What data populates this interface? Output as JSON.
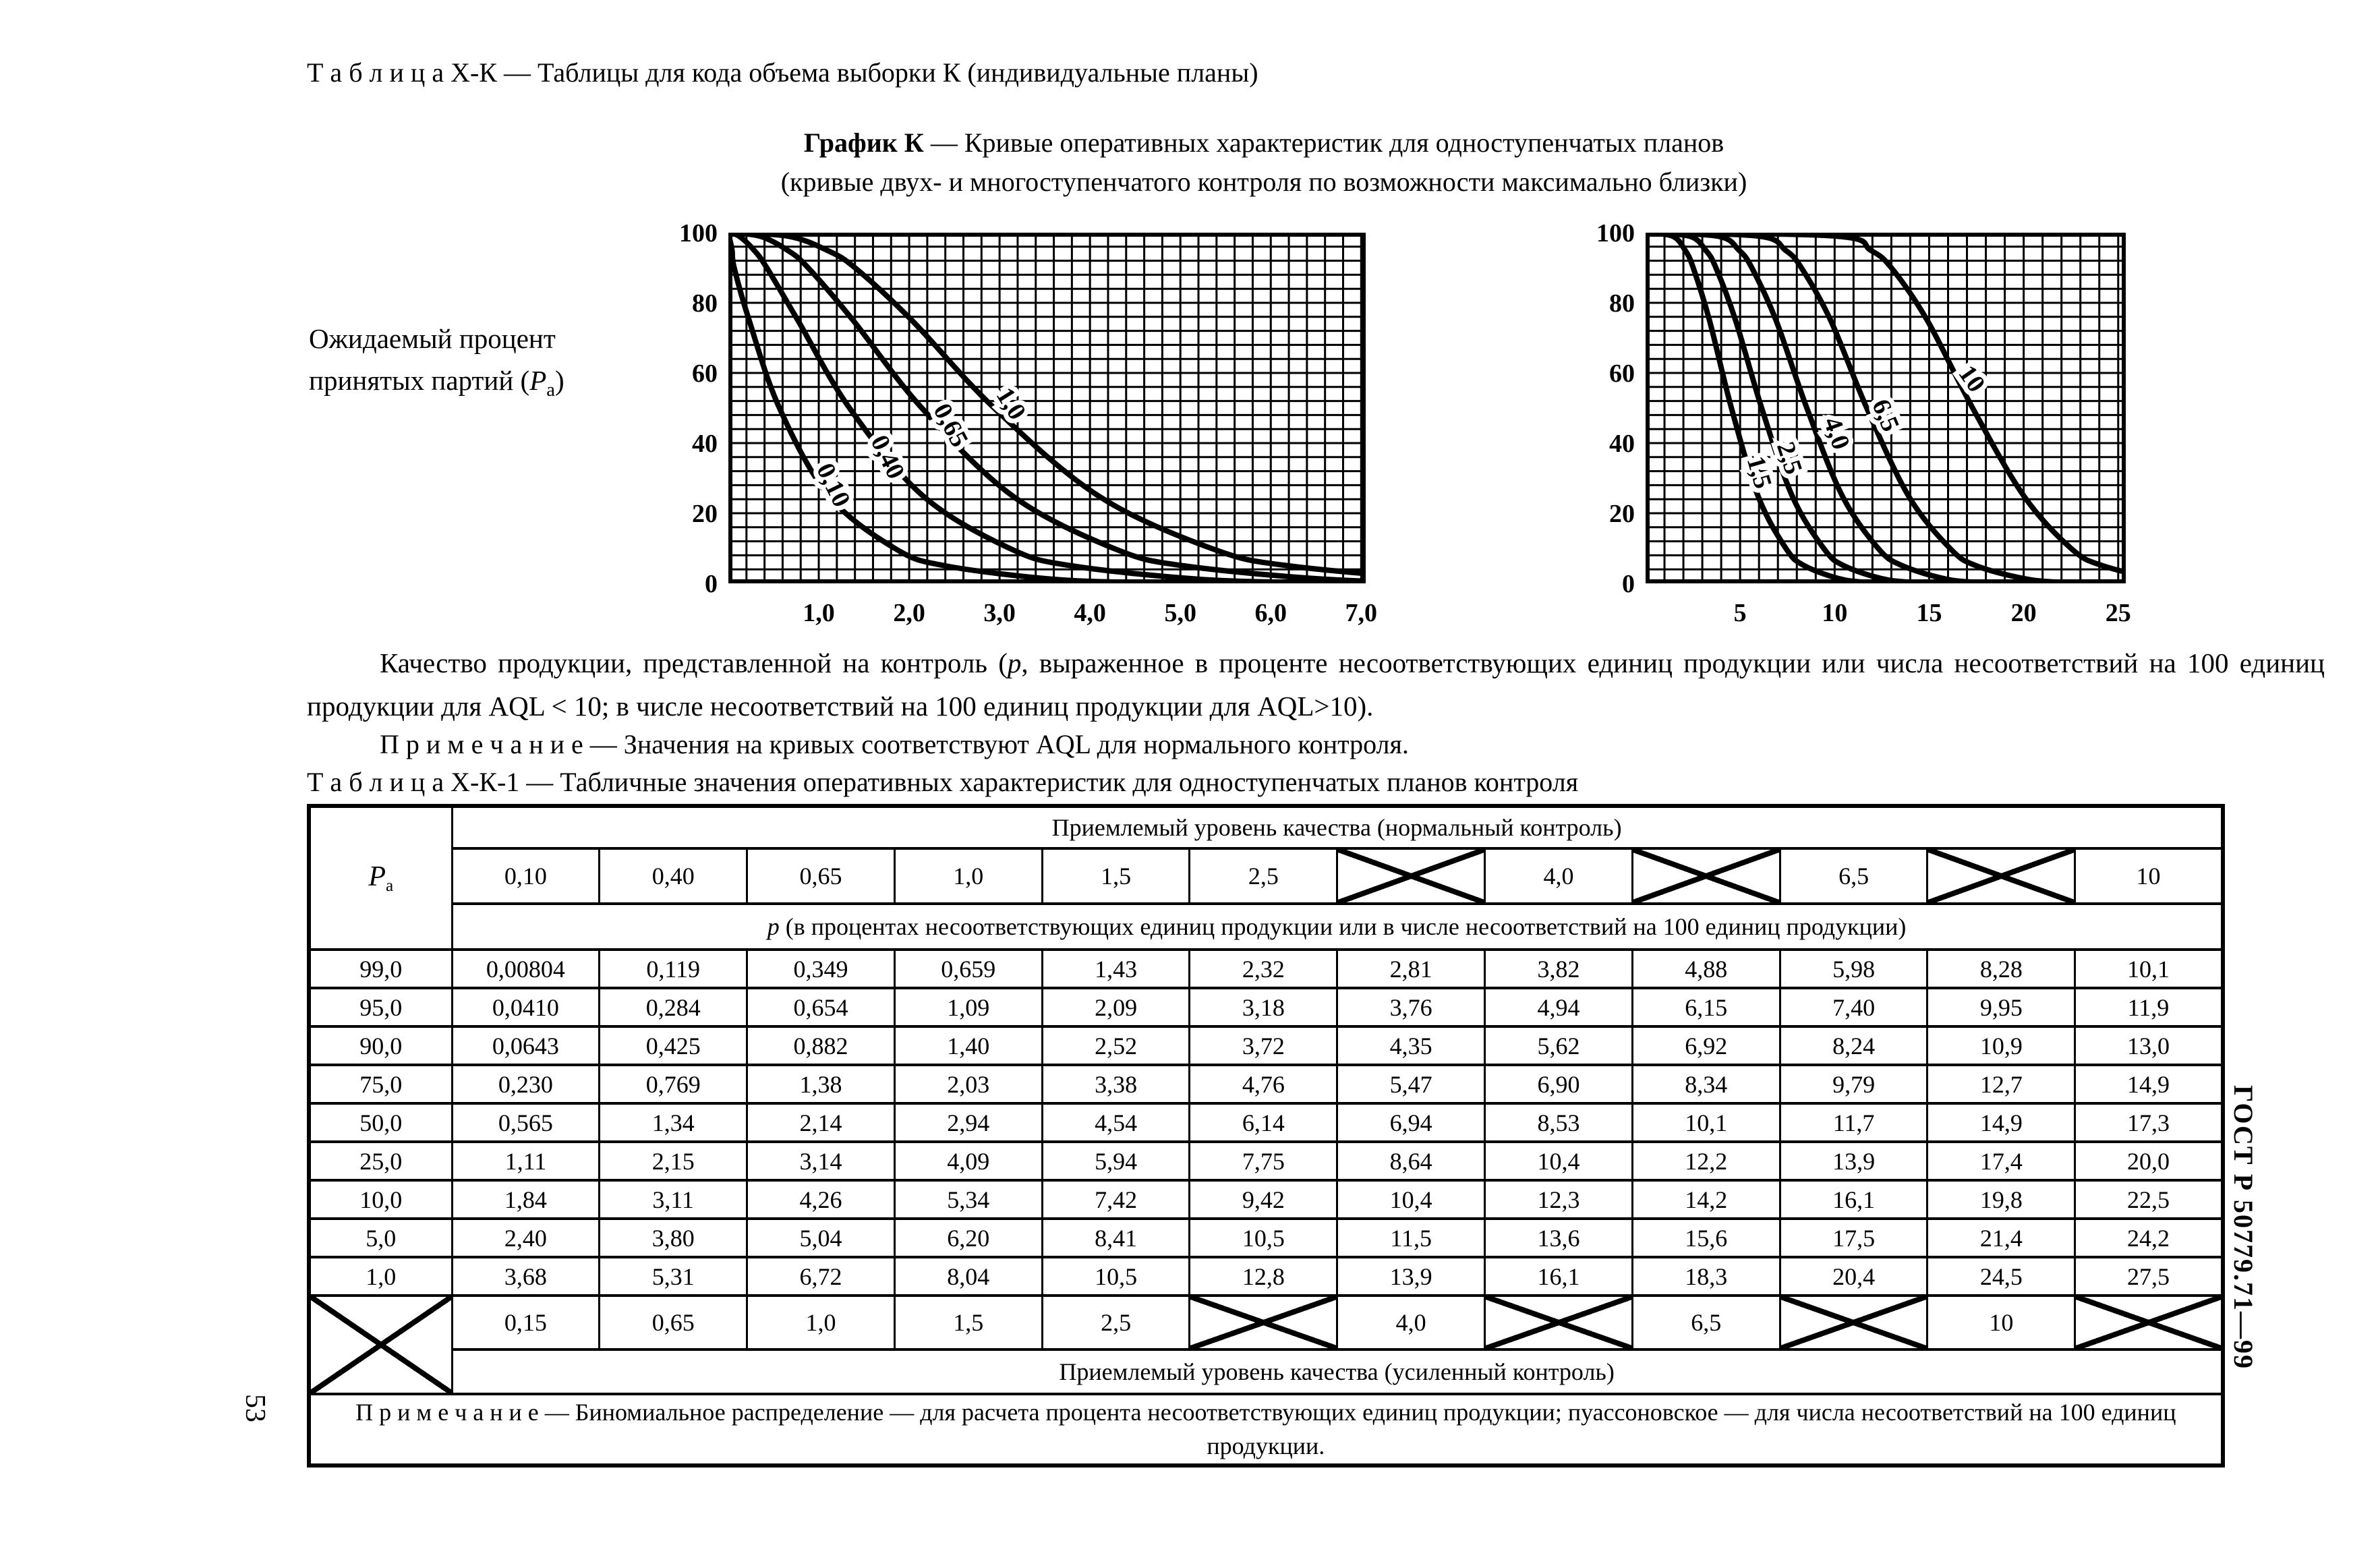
{
  "page": {
    "number": "53",
    "standard": "ГОСТ Р 50779.71—99"
  },
  "titles": {
    "table_xk": "Т а б л и ц а   Х-К — Таблицы для кода объема выборки К (индивидуальные планы)",
    "graph_bold": "График К",
    "graph_rest": " — Кривые оперативных характеристик для одноступенчатых планов",
    "graph_line2": "(кривые двух- и многоступенчатого контроля по возможности максимально близки)",
    "y_label_line1": "Ожидаемый процент",
    "y_label_line2_prefix": "принятых партий (",
    "y_label_line2_suffix": ")",
    "table_xk1": "Т а б л и ц а   Х-К-1 — Табличные значения оперативных характеристик для одноступенчатых планов контроля"
  },
  "symbols": {
    "pa_main": "P",
    "pa_sub": "а"
  },
  "content": {
    "q1": "Качество продукции, представленной на контроль (",
    "q_italic": "р",
    "q2": ", выраженное в проценте несоответствующих единиц продукции или числа несоответствий на 100 единиц продукции для AQL < 10; в числе несоответствий на 100 единиц продукции для AQL>10).",
    "note_graph": "П р и м е ч а н и е — Значения на кривых соответствуют AQL для нормального контроля."
  },
  "table": {
    "header_normal": "Приемлемый уровень качества (нормальный контроль)",
    "aql_normal": [
      "0,10",
      "0,40",
      "0,65",
      "1,0",
      "1,5",
      "2,5",
      null,
      "4,0",
      null,
      "6,5",
      null,
      "10"
    ],
    "p_italic": "р",
    "p_rest": " (в процентах несоответствующих единиц продукции или в числе несоответствий на 100 единиц продукции)",
    "rows": [
      {
        "pa": "99,0",
        "values": [
          "0,00804",
          "0,119",
          "0,349",
          "0,659",
          "1,43",
          "2,32",
          "2,81",
          "3,82",
          "4,88",
          "5,98",
          "8,28",
          "10,1"
        ]
      },
      {
        "pa": "95,0",
        "values": [
          "0,0410",
          "0,284",
          "0,654",
          "1,09",
          "2,09",
          "3,18",
          "3,76",
          "4,94",
          "6,15",
          "7,40",
          "9,95",
          "11,9"
        ]
      },
      {
        "pa": "90,0",
        "values": [
          "0,0643",
          "0,425",
          "0,882",
          "1,40",
          "2,52",
          "3,72",
          "4,35",
          "5,62",
          "6,92",
          "8,24",
          "10,9",
          "13,0"
        ]
      },
      {
        "pa": "75,0",
        "values": [
          "0,230",
          "0,769",
          "1,38",
          "2,03",
          "3,38",
          "4,76",
          "5,47",
          "6,90",
          "8,34",
          "9,79",
          "12,7",
          "14,9"
        ]
      },
      {
        "pa": "50,0",
        "values": [
          "0,565",
          "1,34",
          "2,14",
          "2,94",
          "4,54",
          "6,14",
          "6,94",
          "8,53",
          "10,1",
          "11,7",
          "14,9",
          "17,3"
        ]
      },
      {
        "pa": "25,0",
        "values": [
          "1,11",
          "2,15",
          "3,14",
          "4,09",
          "5,94",
          "7,75",
          "8,64",
          "10,4",
          "12,2",
          "13,9",
          "17,4",
          "20,0"
        ]
      },
      {
        "pa": "10,0",
        "values": [
          "1,84",
          "3,11",
          "4,26",
          "5,34",
          "7,42",
          "9,42",
          "10,4",
          "12,3",
          "14,2",
          "16,1",
          "19,8",
          "22,5"
        ]
      },
      {
        "pa": "5,0",
        "values": [
          "2,40",
          "3,80",
          "5,04",
          "6,20",
          "8,41",
          "10,5",
          "11,5",
          "13,6",
          "15,6",
          "17,5",
          "21,4",
          "24,2"
        ]
      },
      {
        "pa": "1,0",
        "values": [
          "3,68",
          "5,31",
          "6,72",
          "8,04",
          "10,5",
          "12,8",
          "13,9",
          "16,1",
          "18,3",
          "20,4",
          "24,5",
          "27,5"
        ]
      }
    ],
    "aql_tightened": [
      "0,15",
      "0,65",
      "1,0",
      "1,5",
      "2,5",
      null,
      "4,0",
      null,
      "6,5",
      null,
      "10",
      null
    ],
    "header_tightened": "Приемлемый уровень качества (усиленный контроль)",
    "note": "П р и м е ч а н и е — Биномиальное распределение — для расчета процента несоответствующих единиц продукции; пуассоновское — для числа несоответствий на 100 единиц продукции."
  },
  "chart_data": [
    {
      "type": "line",
      "title": "График К — кривые оперативных характеристик (AQL 0,10–1,0)",
      "ylabel": "Ожидаемый процент принятых партий (Pа)",
      "xlabel": "",
      "xlim": [
        0,
        7.05
      ],
      "ylim": [
        0,
        100
      ],
      "x_minor_step": 0.2,
      "y_minor_step": 4,
      "grid": true,
      "x_ticks": [
        {
          "v": 1,
          "label": "1,0"
        },
        {
          "v": 2,
          "label": "2,0"
        },
        {
          "v": 3,
          "label": "3,0"
        },
        {
          "v": 4,
          "label": "4,0"
        },
        {
          "v": 5,
          "label": "5,0"
        },
        {
          "v": 6,
          "label": "6,0"
        },
        {
          "v": 7,
          "label": "7,0"
        }
      ],
      "y_ticks": [
        {
          "v": 100,
          "label": "100"
        },
        {
          "v": 80,
          "label": "80"
        },
        {
          "v": 60,
          "label": "60"
        },
        {
          "v": 40,
          "label": "40"
        },
        {
          "v": 20,
          "label": "20"
        },
        {
          "v": 0,
          "label": "0"
        }
      ],
      "pa_levels": [
        99,
        95,
        90,
        75,
        50,
        25,
        10,
        5,
        1
      ],
      "series": [
        {
          "name": "0,10",
          "p": [
            0.00804,
            0.041,
            0.0643,
            0.23,
            0.565,
            1.11,
            1.84,
            2.4,
            3.68
          ],
          "label": {
            "x": 1.08,
            "y": 27,
            "angle": 64
          }
        },
        {
          "name": "0,40",
          "p": [
            0.119,
            0.284,
            0.425,
            0.769,
            1.34,
            2.15,
            3.11,
            3.8,
            5.31
          ],
          "label": {
            "x": 1.68,
            "y": 35,
            "angle": 64
          }
        },
        {
          "name": "0,65",
          "p": [
            0.349,
            0.654,
            0.882,
            1.38,
            2.14,
            3.14,
            4.26,
            5.04,
            6.72
          ],
          "label": {
            "x": 2.38,
            "y": 44,
            "angle": 62
          }
        },
        {
          "name": "1,0",
          "p": [
            0.659,
            1.09,
            1.4,
            2.03,
            2.94,
            4.09,
            5.34,
            6.2,
            8.04
          ],
          "label": {
            "x": 3.05,
            "y": 50,
            "angle": 58
          }
        }
      ]
    },
    {
      "type": "line",
      "title": "График К — кривые оперативных характеристик (AQL 1,5–10)",
      "ylabel": "Ожидаемый процент принятых партий (Pа)",
      "xlabel": "",
      "xlim": [
        0,
        25.4
      ],
      "ylim": [
        0,
        100
      ],
      "x_minor_step": 1,
      "y_minor_step": 4,
      "grid": true,
      "x_ticks": [
        {
          "v": 5,
          "label": "5"
        },
        {
          "v": 10,
          "label": "10"
        },
        {
          "v": 15,
          "label": "15"
        },
        {
          "v": 20,
          "label": "20"
        },
        {
          "v": 25,
          "label": "25"
        }
      ],
      "y_ticks": [
        {
          "v": 100,
          "label": "100"
        },
        {
          "v": 80,
          "label": "80"
        },
        {
          "v": 60,
          "label": "60"
        },
        {
          "v": 40,
          "label": "40"
        },
        {
          "v": 20,
          "label": "20"
        },
        {
          "v": 0,
          "label": "0"
        }
      ],
      "pa_levels": [
        99,
        95,
        90,
        75,
        50,
        25,
        10,
        5,
        1
      ],
      "series": [
        {
          "name": "1,5",
          "p": [
            1.43,
            2.09,
            2.52,
            3.38,
            4.54,
            5.94,
            7.42,
            8.41,
            10.5
          ],
          "label": {
            "x": 5.6,
            "y": 31,
            "angle": 74
          }
        },
        {
          "name": "2,5",
          "p": [
            2.32,
            3.18,
            3.72,
            4.76,
            6.14,
            7.75,
            9.42,
            10.5,
            12.8
          ],
          "label": {
            "x": 7.2,
            "y": 35,
            "angle": 72
          }
        },
        {
          "name": "4,0",
          "p": [
            3.82,
            4.94,
            5.62,
            6.9,
            8.53,
            10.4,
            12.3,
            13.6,
            16.1
          ],
          "label": {
            "x": 9.7,
            "y": 42,
            "angle": 70
          }
        },
        {
          "name": "6,5",
          "p": [
            5.98,
            7.4,
            8.24,
            9.79,
            11.7,
            13.9,
            16.1,
            17.5,
            20.4
          ],
          "label": {
            "x": 12.3,
            "y": 47,
            "angle": 67
          }
        },
        {
          "name": "10",
          "p": [
            10.1,
            11.9,
            13.0,
            14.9,
            17.3,
            20.0,
            22.5,
            24.2,
            27.5
          ],
          "label": {
            "x": 16.9,
            "y": 57,
            "angle": 55
          }
        }
      ]
    }
  ]
}
